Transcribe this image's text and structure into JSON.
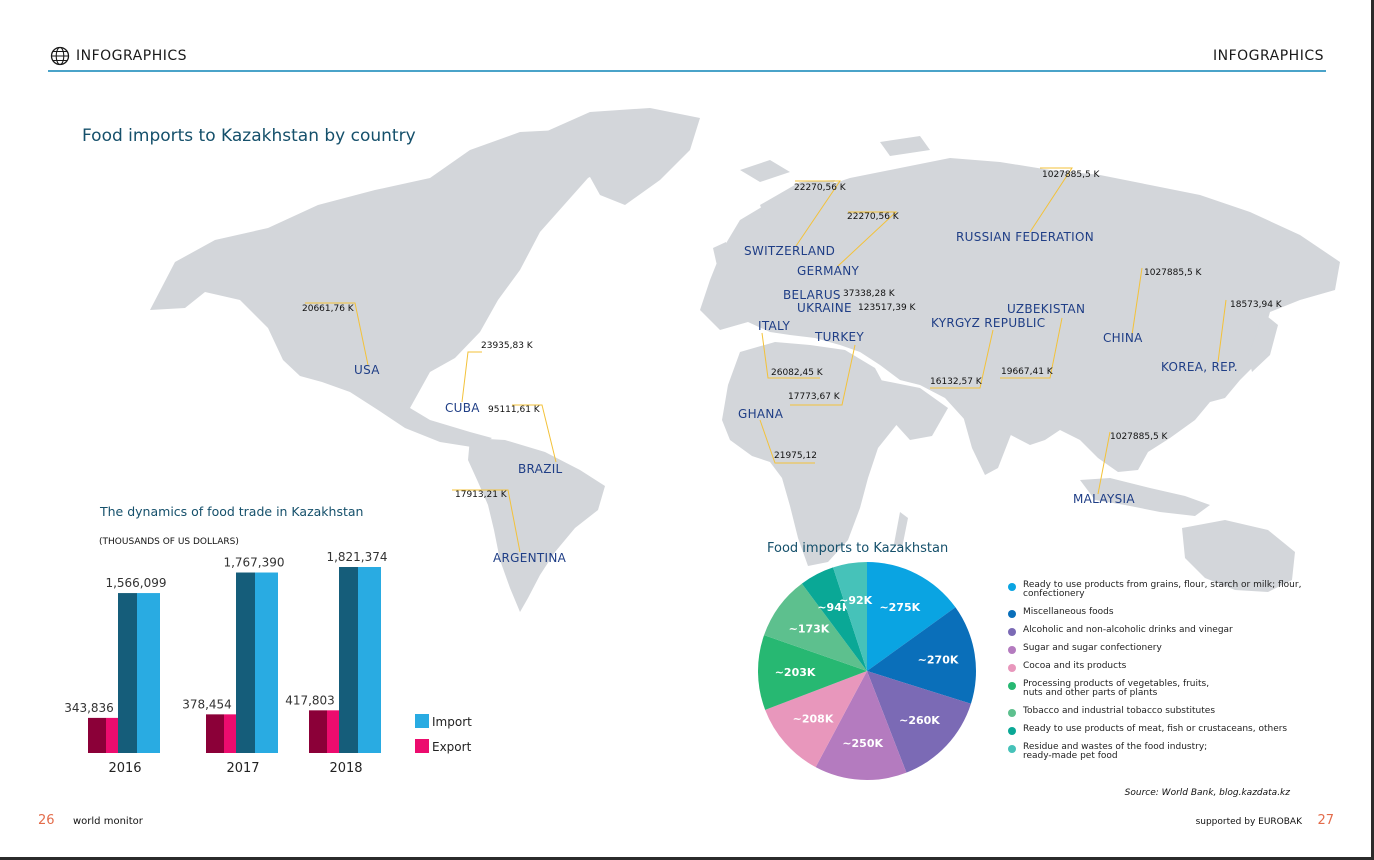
{
  "header": {
    "left_label": "INFOGRAPHICS",
    "right_label": "INFOGRAPHICS",
    "icon": "globe-icon"
  },
  "map": {
    "title": "Food imports to Kazakhstan by country",
    "countries": [
      {
        "name": "USA",
        "value": "20661,76 K"
      },
      {
        "name": "CUBA",
        "value": "23935,83 K"
      },
      {
        "name": "BRAZIL",
        "value": "95111,61 K"
      },
      {
        "name": "ARGENTINA",
        "value": "17913,21 K"
      },
      {
        "name": "SWITZERLAND",
        "value": "22270,56 K"
      },
      {
        "name": "GERMANY",
        "value": "22270,56 K"
      },
      {
        "name": "BELARUS",
        "value": "37338,28 K"
      },
      {
        "name": "UKRAINE",
        "value": "123517,39 K"
      },
      {
        "name": "ITALY",
        "value": "26082,45 K"
      },
      {
        "name": "TURKEY",
        "value": "17773,67 K"
      },
      {
        "name": "GHANA",
        "value": "21975,12"
      },
      {
        "name": "RUSSIAN FEDERATION",
        "value": "1027885,5 K"
      },
      {
        "name": "KYRGYZ REPUBLIC",
        "value": "16132,57 K"
      },
      {
        "name": "UZBEKISTAN",
        "value": "19667,41 K"
      },
      {
        "name": "CHINA",
        "value": "1027885,5 K"
      },
      {
        "name": "KOREA, REP.",
        "value": "18573,94 K"
      },
      {
        "name": "MALAYSIA",
        "value": "1027885,5 K"
      }
    ]
  },
  "chart_data": [
    {
      "type": "bar",
      "title": "The dynamics of food trade in Kazakhstan",
      "subtitle": "(THOUSANDS OF US DOLLARS)",
      "categories": [
        "2016",
        "2017",
        "2018"
      ],
      "series": [
        {
          "name": "Import",
          "values": [
            1566099,
            1767390,
            1821374
          ],
          "labels": [
            "1,566,099",
            "1,767,390",
            "1,821,374"
          ],
          "color": "#29abe2",
          "shade": "#155d7a"
        },
        {
          "name": "Export",
          "values": [
            343836,
            378454,
            417803
          ],
          "labels": [
            "343,836",
            "378,454",
            "417,803"
          ],
          "color": "#ec0c6e",
          "shade": "#8b0038"
        }
      ],
      "ylim": [
        0,
        1821374
      ],
      "legend": "right"
    },
    {
      "type": "pie",
      "title": "Food imports to Kazakhstan",
      "slices": [
        {
          "label": "Ready to use products from grains, flour, starch or milk; flour, confectionery",
          "value": 275,
          "text": "~275K",
          "color": "#0aa4e2"
        },
        {
          "label": "Miscellaneous foods",
          "value": 270,
          "text": "~270K",
          "color": "#0a6fba"
        },
        {
          "label": "Alcoholic and non-alcoholic drinks and vinegar",
          "value": 260,
          "text": "~260K",
          "color": "#7b6ab5"
        },
        {
          "label": "Sugar and sugar confectionery",
          "value": 250,
          "text": "~250K",
          "color": "#b47bbf"
        },
        {
          "label": "Cocoa and its products",
          "value": 208,
          "text": "~208K",
          "color": "#e897bc"
        },
        {
          "label": "Processing products of vegetables, fruits, nuts and other parts of plants",
          "value": 203,
          "text": "~203K",
          "color": "#27b872"
        },
        {
          "label": "Tobacco and industrial tobacco substitutes",
          "value": 173,
          "text": "~173K",
          "color": "#5dc08e"
        },
        {
          "label": "Ready to use products of meat, fish or crustaceans, others",
          "value": 94,
          "text": "~94K",
          "color": "#0aa896"
        },
        {
          "label": "Residue and wastes of the food industry; ready-made pet food",
          "value": 92,
          "text": "~92K",
          "color": "#46c2b9"
        }
      ],
      "legend": "right"
    }
  ],
  "legend_lines": [
    [
      "Ready to use products from grains, flour, starch or milk; flour,",
      "confectionery"
    ],
    [
      "Miscellaneous foods"
    ],
    [
      "Alcoholic and non-alcoholic drinks and vinegar"
    ],
    [
      "Sugar and sugar confectionery"
    ],
    [
      "Cocoa and its products"
    ],
    [
      "Processing products of vegetables, fruits,",
      "nuts and other parts of plants"
    ],
    [
      "Tobacco and industrial tobacco substitutes"
    ],
    [
      "Ready to use products of meat, fish or crustaceans, others"
    ],
    [
      "Residue and wastes of the food industry;",
      "ready-made pet food"
    ]
  ],
  "source": "Source: World Bank, blog.kazdata.kz",
  "footer": {
    "page_left": "26",
    "left_text": "world monitor",
    "right_text": "supported by EUROBAK",
    "page_right": "27"
  },
  "colors": {
    "accent": "#15506b",
    "country_label": "#1f3e86",
    "leader_line": "#f3c23a",
    "land": "#d3d6da",
    "rule": "#4aa3c9",
    "page_number": "#e36c4b"
  }
}
